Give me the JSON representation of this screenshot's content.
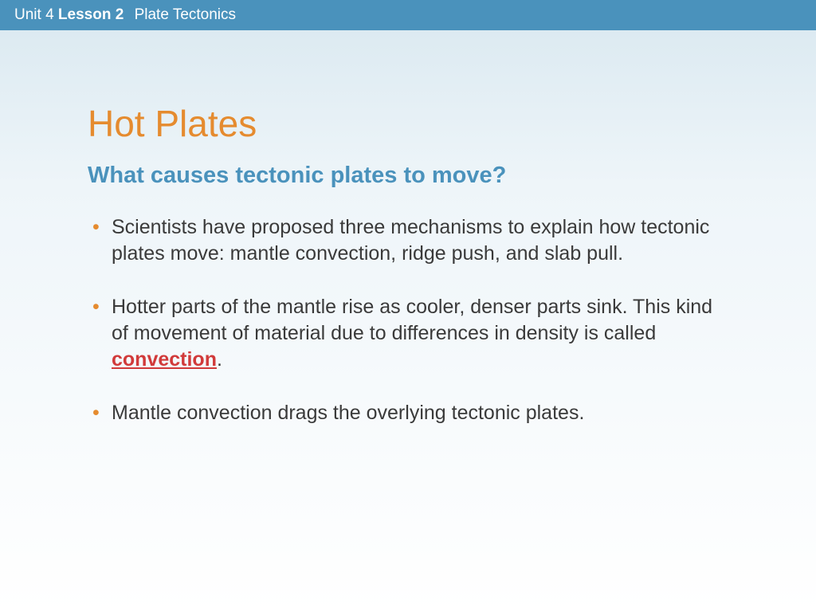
{
  "header": {
    "unit_label": "Unit 4",
    "lesson_label": "Lesson 2",
    "topic": "Plate Tectonics"
  },
  "slide": {
    "title": "Hot Plates",
    "subtitle": "What causes tectonic plates to move?",
    "bullets": [
      {
        "text": "Scientists have proposed three mechanisms to explain how tectonic plates move: mantle convection, ridge push, and slab pull."
      },
      {
        "pre": "Hotter parts of the mantle rise as cooler, denser parts sink. This kind of movement of material due to differences in density is called ",
        "keyword": "convection",
        "post": "."
      },
      {
        "text": "Mantle convection drags the overlying tectonic plates."
      }
    ]
  },
  "colors": {
    "header_bg": "#4a92bc",
    "title": "#e58b2f",
    "subtitle": "#4a92bc",
    "bullet_marker": "#e58b2f",
    "body_text": "#3a3a3a",
    "keyword": "#d13a3a"
  },
  "typography": {
    "title_fontsize": 46,
    "subtitle_fontsize": 29,
    "body_fontsize": 25,
    "header_fontsize": 19
  }
}
